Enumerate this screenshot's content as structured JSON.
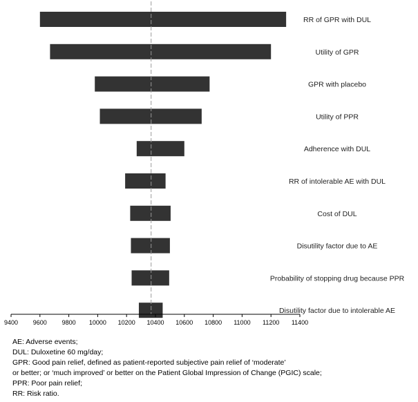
{
  "chart_data": {
    "type": "tornado",
    "title": "",
    "xlabel": "",
    "ylabel": "",
    "xlim": [
      9400,
      11400
    ],
    "xticks": [
      "9400",
      "9600",
      "9800",
      "10000",
      "10200",
      "10400",
      "10600",
      "10800",
      "11000",
      "11200",
      "11400"
    ],
    "baseline": 10370,
    "colors": {
      "bar": "#333333",
      "baseline": "#999999"
    },
    "legend": "right",
    "bars": [
      {
        "label": "RR of GPR with DUL",
        "low": 9600,
        "high": 11305
      },
      {
        "label": "Utility of GPR",
        "low": 9670,
        "high": 11200
      },
      {
        "label": "GPR with placebo",
        "low": 9980,
        "high": 10775
      },
      {
        "label": "Utility of PPR",
        "low": 10015,
        "high": 10720
      },
      {
        "label": "Adherence with DUL",
        "low": 10270,
        "high": 10600
      },
      {
        "label": "RR of intolerable AE with DUL",
        "low": 10190,
        "high": 10470
      },
      {
        "label": "Cost of DUL",
        "low": 10225,
        "high": 10505
      },
      {
        "label": "Disutility factor due to AE",
        "low": 10230,
        "high": 10500
      },
      {
        "label": "Probability of stopping drug because PPR",
        "low": 10235,
        "high": 10495
      },
      {
        "label": "Disutility factor due to intolerable AE",
        "low": 10285,
        "high": 10450
      }
    ]
  },
  "notes": [
    "AE: Adverse events;",
    "DUL: Duloxetine 60 mg/day;",
    "GPR: Good pain relief, defined as patient-reported subjective pain relief of ‘moderate’",
    "or better; or ‘much improved’ or better on the Patient Global Impression of Change (PGIC) scale;",
    "PPR: Poor pain relief;",
    "RR: Risk ratio."
  ]
}
